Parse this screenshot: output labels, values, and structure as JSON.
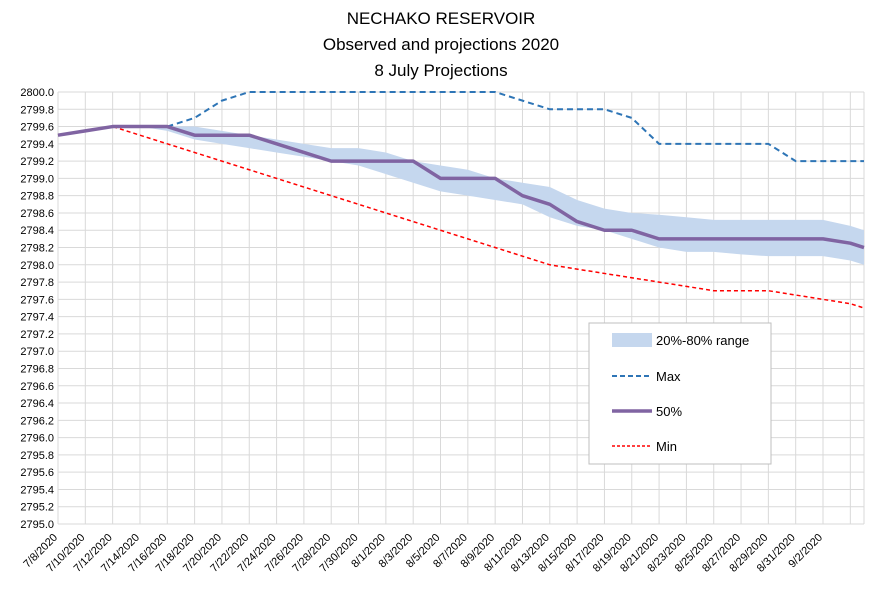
{
  "chart_data": {
    "type": "line",
    "title_lines": [
      "NECHAKO RESERVOIR",
      "Observed and projections 2020",
      "8 July Projections"
    ],
    "xlabel": "",
    "ylabel": "",
    "ylim": [
      2795.0,
      2800.0
    ],
    "y_step": 0.2,
    "grid": true,
    "legend_position": "lower-right",
    "x_tick_labels": [
      "7/8/2020",
      "7/10/2020",
      "7/12/2020",
      "7/14/2020",
      "7/16/2020",
      "7/18/2020",
      "7/20/2020",
      "7/22/2020",
      "7/24/2020",
      "7/26/2020",
      "7/28/2020",
      "7/30/2020",
      "8/1/2020",
      "8/3/2020",
      "8/5/2020",
      "8/7/2020",
      "8/9/2020",
      "8/11/2020",
      "8/13/2020",
      "8/15/2020",
      "8/17/2020",
      "8/19/2020",
      "8/21/2020",
      "8/23/2020",
      "8/25/2020",
      "8/27/2020",
      "8/29/2020",
      "8/31/2020",
      "9/2/2020"
    ],
    "band": {
      "name": "20%-80% range",
      "color": "#c5d7ee",
      "x": [
        0,
        1,
        2,
        3,
        4,
        5,
        6,
        7,
        8,
        9,
        10,
        11,
        12,
        13,
        14,
        15,
        16,
        17,
        18,
        19,
        20,
        21,
        22,
        23,
        24,
        25,
        26,
        27,
        28,
        29,
        29.5
      ],
      "upper": [
        2799.5,
        2799.55,
        2799.6,
        2799.6,
        2799.6,
        2799.6,
        2799.55,
        2799.5,
        2799.45,
        2799.4,
        2799.35,
        2799.35,
        2799.3,
        2799.2,
        2799.15,
        2799.1,
        2799.0,
        2798.95,
        2798.9,
        2798.75,
        2798.65,
        2798.6,
        2798.58,
        2798.55,
        2798.52,
        2798.52,
        2798.52,
        2798.52,
        2798.52,
        2798.45,
        2798.4
      ],
      "lower": [
        2799.5,
        2799.55,
        2799.6,
        2799.6,
        2799.55,
        2799.45,
        2799.4,
        2799.35,
        2799.3,
        2799.25,
        2799.2,
        2799.15,
        2799.05,
        2798.95,
        2798.85,
        2798.8,
        2798.75,
        2798.7,
        2798.55,
        2798.45,
        2798.4,
        2798.3,
        2798.2,
        2798.15,
        2798.15,
        2798.12,
        2798.1,
        2798.1,
        2798.1,
        2798.05,
        2798.0
      ]
    },
    "series": [
      {
        "name": "Max",
        "color": "#2e75b6",
        "style": "dashed",
        "x": [
          0,
          1,
          2,
          3,
          4,
          5,
          6,
          7,
          8,
          9,
          10,
          11,
          12,
          13,
          14,
          15,
          16,
          17,
          18,
          19,
          20,
          21,
          22,
          23,
          24,
          25,
          26,
          27,
          28,
          29,
          29.5
        ],
        "values": [
          2799.5,
          2799.55,
          2799.6,
          2799.6,
          2799.6,
          2799.7,
          2799.9,
          2800.0,
          2800.0,
          2800.0,
          2800.0,
          2800.0,
          2800.0,
          2800.0,
          2800.0,
          2800.0,
          2800.0,
          2799.9,
          2799.8,
          2799.8,
          2799.8,
          2799.7,
          2799.4,
          2799.4,
          2799.4,
          2799.4,
          2799.4,
          2799.2,
          2799.2,
          2799.2,
          2799.2
        ]
      },
      {
        "name": "50%",
        "color": "#8064a2",
        "style": "solid-thick",
        "x": [
          0,
          1,
          2,
          3,
          4,
          5,
          6,
          7,
          8,
          9,
          10,
          11,
          12,
          13,
          14,
          15,
          16,
          17,
          18,
          19,
          20,
          21,
          22,
          23,
          24,
          25,
          26,
          27,
          28,
          29,
          29.5
        ],
        "values": [
          2799.5,
          2799.55,
          2799.6,
          2799.6,
          2799.6,
          2799.5,
          2799.5,
          2799.5,
          2799.4,
          2799.3,
          2799.2,
          2799.2,
          2799.2,
          2799.2,
          2799.0,
          2799.0,
          2799.0,
          2798.8,
          2798.7,
          2798.5,
          2798.4,
          2798.4,
          2798.3,
          2798.3,
          2798.3,
          2798.3,
          2798.3,
          2798.3,
          2798.3,
          2798.25,
          2798.2
        ]
      },
      {
        "name": "Min",
        "color": "#ff0000",
        "style": "dotted",
        "x": [
          0,
          1,
          2,
          3,
          4,
          5,
          6,
          7,
          8,
          9,
          10,
          11,
          12,
          13,
          14,
          15,
          16,
          17,
          18,
          19,
          20,
          21,
          22,
          23,
          24,
          25,
          26,
          27,
          28,
          29,
          29.5
        ],
        "values": [
          2799.5,
          2799.55,
          2799.6,
          2799.5,
          2799.4,
          2799.3,
          2799.2,
          2799.1,
          2799.0,
          2798.9,
          2798.8,
          2798.7,
          2798.6,
          2798.5,
          2798.4,
          2798.3,
          2798.2,
          2798.1,
          2798.0,
          2797.95,
          2797.9,
          2797.85,
          2797.8,
          2797.75,
          2797.7,
          2797.7,
          2797.7,
          2797.65,
          2797.6,
          2797.55,
          2797.5
        ]
      }
    ]
  }
}
